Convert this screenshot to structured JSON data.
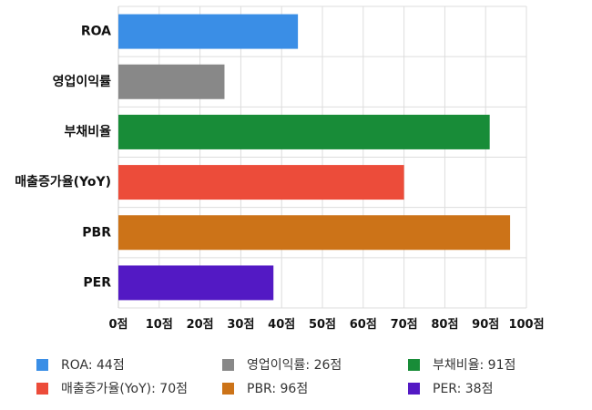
{
  "chart_data": {
    "type": "bar",
    "orientation": "horizontal",
    "categories": [
      "ROA",
      "영업이익률",
      "부채비율",
      "매출증가율(YoY)",
      "PBR",
      "PER"
    ],
    "values": [
      44,
      26,
      91,
      70,
      96,
      38
    ],
    "colors": [
      "#3a8ee6",
      "#888888",
      "#188c38",
      "#ec4c3a",
      "#cc7318",
      "#5319c4"
    ],
    "unit": "점",
    "xlim": [
      0,
      100
    ],
    "x_ticks": [
      0,
      10,
      20,
      30,
      40,
      50,
      60,
      70,
      80,
      90,
      100
    ],
    "x_tick_labels": [
      "0점",
      "10점",
      "20점",
      "30점",
      "40점",
      "50점",
      "60점",
      "70점",
      "80점",
      "90점",
      "100점"
    ],
    "grid": true,
    "legend_position": "bottom",
    "legend": [
      {
        "label": "ROA: 44점",
        "color": "#3a8ee6"
      },
      {
        "label": "영업이익률: 26점",
        "color": "#888888"
      },
      {
        "label": "부채비율: 91점",
        "color": "#188c38"
      },
      {
        "label": "매출증가율(YoY): 70점",
        "color": "#ec4c3a"
      },
      {
        "label": "PBR: 96점",
        "color": "#cc7318"
      },
      {
        "label": "PER: 38점",
        "color": "#5319c4"
      }
    ]
  }
}
